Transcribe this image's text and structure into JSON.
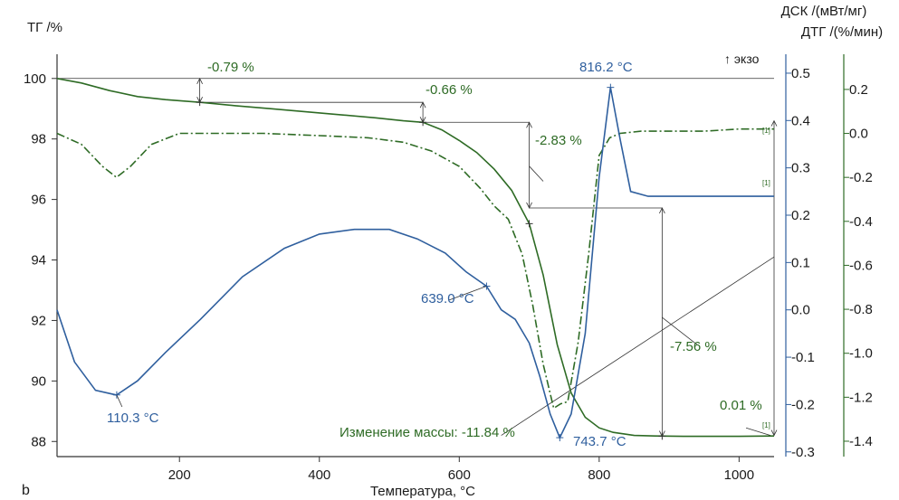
{
  "chart_data": {
    "type": "line",
    "panel_label": "b",
    "xlabel": "Температура, °C",
    "xlim": [
      25,
      1050
    ],
    "x_ticks": [
      200,
      400,
      600,
      800,
      1000
    ],
    "axes": {
      "tg": {
        "title": "ТГ /%",
        "lim": [
          87.5,
          100.8
        ],
        "ticks": [
          88,
          90,
          92,
          94,
          96,
          98,
          100
        ]
      },
      "dsc": {
        "title": "ДСК /(мВт/мг)",
        "lim": [
          -0.31,
          0.54
        ],
        "ticks": [
          -0.3,
          -0.2,
          -0.1,
          0.0,
          0.1,
          0.2,
          0.3,
          0.4,
          0.5
        ],
        "tick_labels": [
          "-0.3",
          "-0.2",
          "-0.1",
          "0.0",
          "0.1",
          "0.2",
          "0.3",
          "0.4",
          "0.5"
        ]
      },
      "dtg": {
        "title": "ДТГ /(%/мин)",
        "lim": [
          -1.47,
          0.36
        ],
        "ticks": [
          -1.4,
          -1.2,
          -1.0,
          -0.8,
          -0.6,
          -0.4,
          -0.2,
          0.0,
          0.2
        ],
        "tick_labels": [
          "-1.4",
          "-1.2",
          "-1.0",
          "-0.8",
          "-0.6",
          "-0.4",
          "-0.2",
          "0.0",
          "0.2"
        ]
      }
    },
    "exo_label": "↑ экзо",
    "series": [
      {
        "name": "TG",
        "axis": "tg",
        "color": "#2e6b25",
        "style": "solid",
        "x": [
          25,
          60,
          100,
          140,
          180,
          230,
          280,
          330,
          380,
          430,
          480,
          520,
          548,
          575,
          600,
          625,
          650,
          675,
          700,
          720,
          740,
          760,
          780,
          800,
          820,
          850,
          880,
          920,
          960,
          1000,
          1050
        ],
        "y": [
          100.0,
          99.85,
          99.6,
          99.4,
          99.3,
          99.21,
          99.1,
          99.0,
          98.9,
          98.8,
          98.7,
          98.6,
          98.55,
          98.3,
          97.95,
          97.55,
          97.0,
          96.3,
          95.2,
          93.5,
          91.2,
          89.6,
          88.8,
          88.45,
          88.3,
          88.2,
          88.18,
          88.17,
          88.17,
          88.17,
          88.18
        ]
      },
      {
        "name": "DTG",
        "axis": "dtg",
        "color": "#2e6b25",
        "style": "dashdot",
        "x": [
          25,
          60,
          90,
          110,
          130,
          160,
          200,
          260,
          320,
          400,
          470,
          520,
          560,
          600,
          630,
          650,
          670,
          690,
          705,
          720,
          735,
          745,
          755,
          770,
          785,
          800,
          815,
          830,
          860,
          900,
          950,
          1000,
          1050
        ],
        "y": [
          0.0,
          -0.05,
          -0.15,
          -0.2,
          -0.15,
          -0.05,
          0.0,
          0.0,
          0.0,
          -0.01,
          -0.02,
          -0.04,
          -0.08,
          -0.15,
          -0.25,
          -0.33,
          -0.39,
          -0.55,
          -0.78,
          -1.05,
          -1.25,
          -1.23,
          -1.22,
          -0.95,
          -0.55,
          -0.1,
          -0.02,
          0.0,
          0.01,
          0.01,
          0.01,
          0.02,
          0.02
        ]
      },
      {
        "name": "DSC",
        "axis": "dsc",
        "color": "#2f5f9e",
        "style": "solid",
        "x": [
          25,
          50,
          80,
          110,
          140,
          180,
          230,
          290,
          350,
          400,
          450,
          500,
          540,
          580,
          610,
          639,
          660,
          680,
          700,
          715,
          730,
          743.7,
          760,
          780,
          800,
          816.2,
          830,
          845,
          870,
          900,
          950,
          1000,
          1050
        ],
        "y": [
          0.0,
          -0.11,
          -0.17,
          -0.18,
          -0.15,
          -0.09,
          -0.02,
          0.07,
          0.13,
          0.16,
          0.17,
          0.17,
          0.15,
          0.12,
          0.08,
          0.05,
          0.0,
          -0.02,
          -0.07,
          -0.14,
          -0.22,
          -0.27,
          -0.22,
          -0.05,
          0.28,
          0.47,
          0.36,
          0.25,
          0.24,
          0.24,
          0.24,
          0.24,
          0.24
        ]
      }
    ],
    "annotations": [
      {
        "text": "-0.79 %",
        "color": "green"
      },
      {
        "text": "-0.66 %",
        "color": "green"
      },
      {
        "text": "-2.83 %",
        "color": "green"
      },
      {
        "text": "-7.56 %",
        "color": "green"
      },
      {
        "text": "0.01 %",
        "color": "green"
      },
      {
        "text": "Изменение массы: -11.84 %",
        "color": "green"
      },
      {
        "text": "816.2 °C",
        "color": "blue"
      },
      {
        "text": "639.0 °C",
        "color": "blue"
      },
      {
        "text": "110.3 °C",
        "color": "blue"
      },
      {
        "text": "743.7 °C",
        "color": "blue"
      }
    ],
    "series_tags": [
      "[1]",
      "[1]",
      "[1]"
    ]
  }
}
